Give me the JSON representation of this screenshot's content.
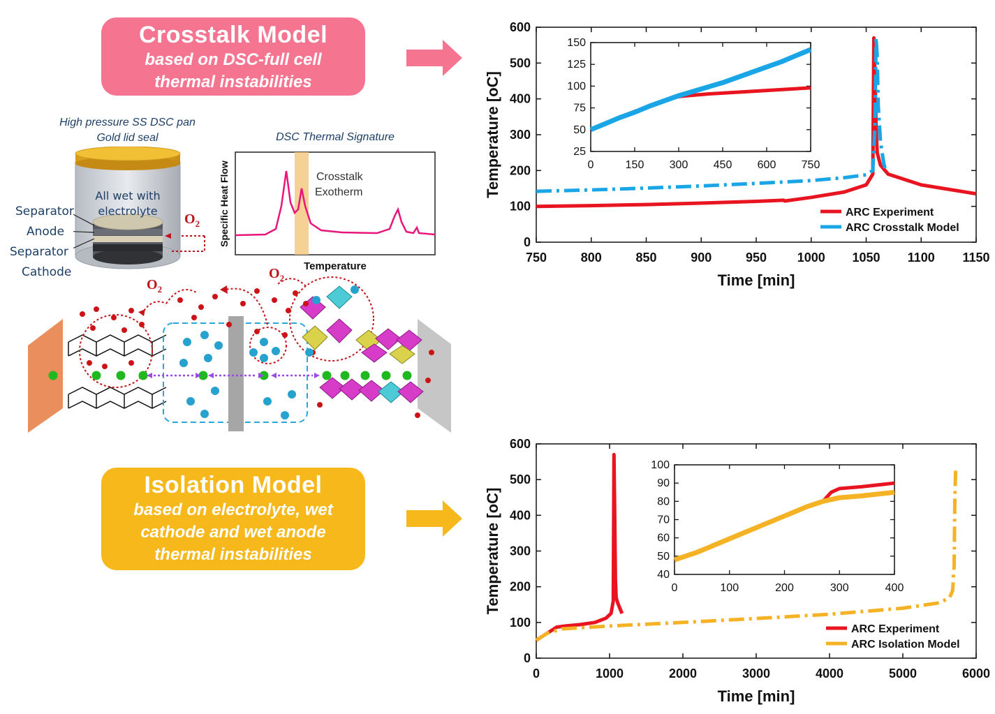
{
  "crosstalk_box": {
    "title": "Crosstalk Model",
    "subtitle_lines": [
      "based on DSC-full cell",
      "thermal instabilities"
    ],
    "color": "#f5748f"
  },
  "isolation_box": {
    "title": "Isolation Model",
    "subtitle_lines": [
      "based on electrolyte, wet",
      "cathode and wet anode",
      "thermal instabilities"
    ],
    "color": "#f6b81a"
  },
  "dsc_pan": {
    "caption_lines": [
      "High pressure SS DSC pan",
      "Gold lid seal"
    ],
    "inside_text_lines": [
      "All wet with",
      "electrolyte"
    ],
    "layers": [
      "Separator",
      "Anode",
      "Separator",
      "Cathode"
    ],
    "gas": "O",
    "gas_subscript": "2"
  },
  "dsc_signature": {
    "title": "DSC Thermal Signature",
    "ylabel": "Specific Heat Flow",
    "xlabel": "Temperature",
    "annotation_lines": [
      "Crosstalk",
      "Exotherm"
    ]
  },
  "schematic": {
    "o2_labels": [
      {
        "text": "O",
        "sub": "2"
      },
      {
        "text": "O",
        "sub": "2"
      }
    ]
  },
  "colors": {
    "experiment": "#e8141f",
    "crosstalk_model": "#1aa6e6",
    "isolation_model": "#f4b224",
    "pink": "#f5748f",
    "dsc_curve": "#e8157a"
  },
  "chart_data": [
    {
      "type": "line",
      "xlabel": "Time [min]",
      "ylabel": "Temperature [oC]",
      "xlim": [
        750,
        1150
      ],
      "ylim": [
        0,
        600
      ],
      "xticks": [
        750,
        800,
        850,
        900,
        950,
        1000,
        1050,
        1100,
        1150
      ],
      "yticks": [
        0,
        100,
        200,
        300,
        400,
        500,
        600
      ],
      "legend_position": "bottom-right",
      "series": [
        {
          "name": "ARC Experiment",
          "style": "solid",
          "x": [
            750,
            800,
            850,
            900,
            950,
            975,
            976,
            1000,
            1030,
            1050,
            1056,
            1057,
            1058,
            1059,
            1060,
            1063,
            1070,
            1100,
            1150
          ],
          "y": [
            100,
            102,
            105,
            109,
            114,
            117,
            115,
            125,
            140,
            160,
            190,
            570,
            470,
            320,
            250,
            215,
            190,
            160,
            135
          ]
        },
        {
          "name": "ARC Crosstalk Model",
          "style": "dashed",
          "x": [
            750,
            800,
            850,
            900,
            950,
            1000,
            1030,
            1050,
            1056,
            1058,
            1059,
            1060,
            1061,
            1063,
            1066,
            1068
          ],
          "y": [
            142,
            146,
            151,
            157,
            164,
            172,
            180,
            188,
            200,
            330,
            570,
            520,
            380,
            280,
            220,
            195
          ]
        }
      ],
      "inset": {
        "xlim": [
          0,
          750
        ],
        "ylim": [
          25,
          150
        ],
        "xticks": [
          0,
          150,
          300,
          450,
          600,
          750
        ],
        "yticks": [
          25,
          50,
          75,
          100,
          125,
          150
        ],
        "series": [
          {
            "name": "ARC Experiment",
            "x": [
              0,
              50,
              100,
              150,
              200,
              250,
              300,
              330,
              400,
              500,
              600,
              700,
              750
            ],
            "y": [
              50,
              57,
              64,
              71,
              77,
              83,
              88,
              89,
              91,
              93,
              95,
              97,
              98
            ]
          },
          {
            "name": "ARC Crosstalk Model",
            "x": [
              0,
              50,
              100,
              150,
              200,
              250,
              300,
              350,
              400,
              450,
              500,
              550,
              600,
              650,
              700,
              750
            ],
            "y": [
              50,
              57,
              64,
              70,
              77,
              83,
              89,
              94,
              99,
              104,
              110,
              116,
              122,
              128,
              135,
              142
            ]
          }
        ]
      }
    },
    {
      "type": "line",
      "xlabel": "Time [min]",
      "ylabel": "Temperature [oC]",
      "xlim": [
        0,
        6000
      ],
      "ylim": [
        0,
        600
      ],
      "xticks": [
        0,
        1000,
        2000,
        3000,
        4000,
        5000,
        6000
      ],
      "yticks": [
        0,
        100,
        200,
        300,
        400,
        500,
        600
      ],
      "legend_position": "bottom-right",
      "series": [
        {
          "name": "ARC Experiment",
          "style": "solid",
          "x": [
            0,
            150,
            280,
            400,
            600,
            800,
            950,
            1020,
            1050,
            1060,
            1070,
            1080,
            1090,
            1110,
            1140,
            1170
          ],
          "y": [
            50,
            70,
            87,
            90,
            94,
            100,
            112,
            125,
            160,
            570,
            400,
            220,
            170,
            155,
            140,
            125
          ]
        },
        {
          "name": "ARC Isolation Model",
          "style": "dashed",
          "x": [
            0,
            150,
            350,
            1000,
            2000,
            3000,
            4000,
            5000,
            5500,
            5640,
            5680,
            5700,
            5710,
            5720
          ],
          "y": [
            50,
            70,
            82,
            90,
            100,
            111,
            123,
            140,
            155,
            170,
            190,
            260,
            450,
            525
          ]
        }
      ],
      "inset": {
        "xlim": [
          0,
          400
        ],
        "ylim": [
          40,
          100
        ],
        "xticks": [
          0,
          100,
          200,
          300,
          400
        ],
        "yticks": [
          40,
          50,
          60,
          70,
          80,
          90,
          100
        ],
        "series": [
          {
            "name": "ARC Experiment",
            "x": [
              0,
              40,
              80,
              120,
              160,
              200,
              240,
              270,
              285,
              300,
              340,
              400
            ],
            "y": [
              48,
              52,
              57,
              62,
              67,
              72,
              77,
              80,
              85,
              87,
              88,
              90
            ]
          },
          {
            "name": "ARC Isolation Model",
            "x": [
              0,
              40,
              80,
              120,
              160,
              200,
              240,
              270,
              300,
              340,
              400
            ],
            "y": [
              48,
              52,
              57,
              62,
              67,
              72,
              77,
              80,
              82,
              83,
              85
            ]
          }
        ]
      }
    }
  ]
}
